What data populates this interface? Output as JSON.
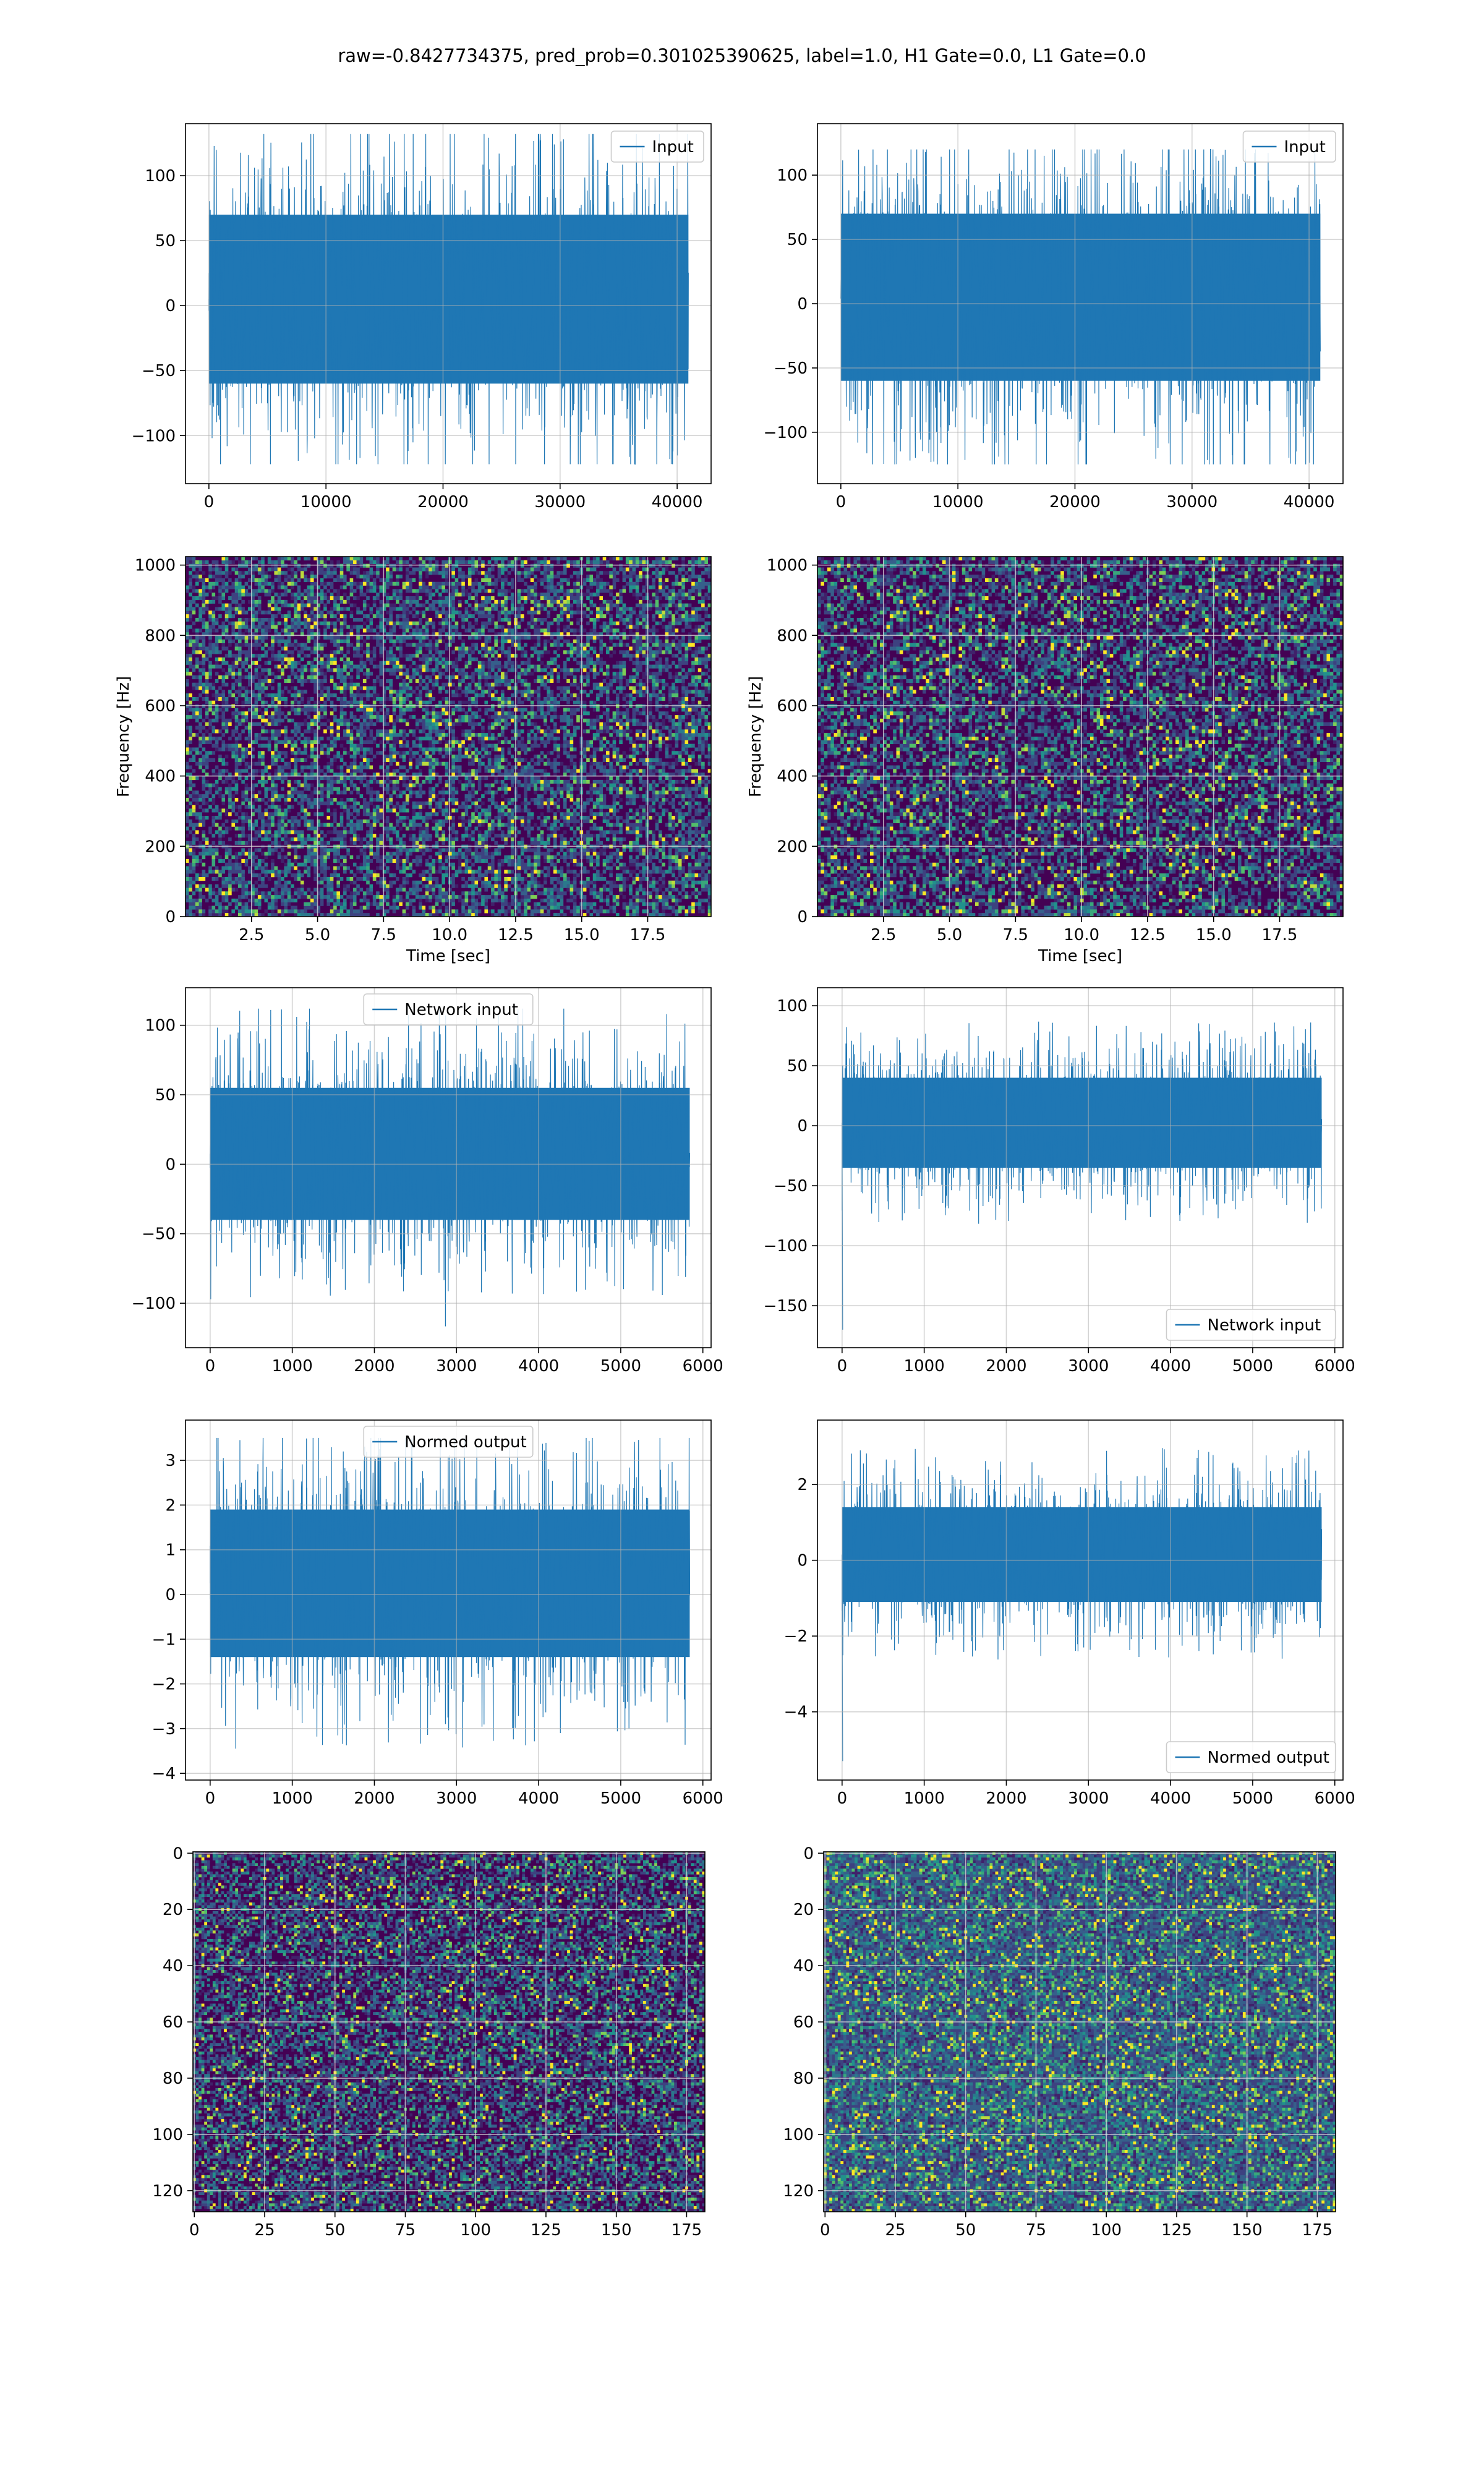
{
  "figure": {
    "suptitle": "raw=-0.8427734375, pred_prob=0.301025390625, label=1.0, H1 Gate=0.0, L1 Gate=0.0"
  },
  "colors": {
    "series": "#1f77b4",
    "grid": "#b0b0b0",
    "viridis_low": "#440154",
    "viridis_mid": "#21918c",
    "viridis_high": "#fde725"
  },
  "chart_data": [
    {
      "id": "r1c1",
      "type": "line",
      "title": "",
      "xlabel": "",
      "ylabel": "",
      "legend": {
        "entries": [
          "Input"
        ],
        "position": "top-right"
      },
      "grid": true,
      "xlim": [
        -2000,
        42900
      ],
      "ylim": [
        -137,
        140
      ],
      "xticks": [
        0,
        10000,
        20000,
        30000,
        40000
      ],
      "xtick_labels": [
        "0",
        "10000",
        "20000",
        "30000",
        "40000"
      ],
      "yticks": [
        -100,
        -50,
        0,
        50,
        100
      ],
      "ytick_labels": [
        "−100",
        "−50",
        "0",
        "50",
        "100"
      ],
      "series": [
        {
          "name": "Input",
          "n": 40960,
          "x_range": [
            0,
            40960
          ],
          "band": [
            -60,
            70
          ],
          "extremes": [
            -122,
            132
          ]
        }
      ]
    },
    {
      "id": "r1c2",
      "type": "line",
      "title": "",
      "xlabel": "",
      "ylabel": "",
      "legend": {
        "entries": [
          "Input"
        ],
        "position": "top-right"
      },
      "grid": true,
      "xlim": [
        -2000,
        42900
      ],
      "ylim": [
        -140,
        140
      ],
      "xticks": [
        0,
        10000,
        20000,
        30000,
        40000
      ],
      "xtick_labels": [
        "0",
        "10000",
        "20000",
        "30000",
        "40000"
      ],
      "yticks": [
        -100,
        -50,
        0,
        50,
        100
      ],
      "ytick_labels": [
        "−100",
        "−50",
        "0",
        "50",
        "100"
      ],
      "series": [
        {
          "name": "Input",
          "n": 40960,
          "x_range": [
            0,
            40960
          ],
          "band": [
            -60,
            70
          ],
          "extremes": [
            -125,
            120
          ]
        }
      ]
    },
    {
      "id": "r2c1",
      "type": "heatmap",
      "title": "",
      "xlabel": "Time [sec]",
      "ylabel": "Frequency [Hz]",
      "grid": true,
      "colormap": "viridis",
      "xlim": [
        0,
        19.9
      ],
      "ylim": [
        0,
        1024
      ],
      "xticks": [
        2.5,
        5.0,
        7.5,
        10.0,
        12.5,
        15.0,
        17.5
      ],
      "xtick_labels": [
        "2.5",
        "5.0",
        "7.5",
        "10.0",
        "12.5",
        "15.0",
        "17.5"
      ],
      "yticks": [
        0,
        200,
        400,
        600,
        800,
        1000
      ],
      "ytick_labels": [
        "0",
        "200",
        "400",
        "600",
        "800",
        "1000"
      ]
    },
    {
      "id": "r2c2",
      "type": "heatmap",
      "title": "",
      "xlabel": "Time [sec]",
      "ylabel": "Frequency [Hz]",
      "grid": true,
      "colormap": "viridis",
      "xlim": [
        0,
        19.9
      ],
      "ylim": [
        0,
        1024
      ],
      "xticks": [
        2.5,
        5.0,
        7.5,
        10.0,
        12.5,
        15.0,
        17.5
      ],
      "xtick_labels": [
        "2.5",
        "5.0",
        "7.5",
        "10.0",
        "12.5",
        "15.0",
        "17.5"
      ],
      "yticks": [
        0,
        200,
        400,
        600,
        800,
        1000
      ],
      "ytick_labels": [
        "0",
        "200",
        "400",
        "600",
        "800",
        "1000"
      ]
    },
    {
      "id": "r3c1",
      "type": "line",
      "title": "",
      "xlabel": "",
      "ylabel": "",
      "legend": {
        "entries": [
          "Network input"
        ],
        "position": "top-center"
      },
      "grid": true,
      "xlim": [
        -300,
        6100
      ],
      "ylim": [
        -132,
        127
      ],
      "xticks": [
        0,
        1000,
        2000,
        3000,
        4000,
        5000,
        6000
      ],
      "xtick_labels": [
        "0",
        "1000",
        "2000",
        "3000",
        "4000",
        "5000",
        "6000"
      ],
      "yticks": [
        -100,
        -50,
        0,
        50,
        100
      ],
      "ytick_labels": [
        "−100",
        "−50",
        "0",
        "50",
        "100"
      ],
      "series": [
        {
          "name": "Network input",
          "n": 5840,
          "x_range": [
            0,
            5840
          ],
          "band": [
            -40,
            55
          ],
          "extremes": [
            -118,
            112
          ]
        }
      ]
    },
    {
      "id": "r3c2",
      "type": "line",
      "title": "",
      "xlabel": "",
      "ylabel": "",
      "legend": {
        "entries": [
          "Network input"
        ],
        "position": "bottom-right"
      },
      "grid": true,
      "xlim": [
        -300,
        6100
      ],
      "ylim": [
        -185,
        115
      ],
      "xticks": [
        0,
        1000,
        2000,
        3000,
        4000,
        5000,
        6000
      ],
      "xtick_labels": [
        "0",
        "1000",
        "2000",
        "3000",
        "4000",
        "5000",
        "6000"
      ],
      "yticks": [
        -150,
        -100,
        -50,
        0,
        50,
        100
      ],
      "ytick_labels": [
        "−150",
        "−100",
        "−50",
        "0",
        "50",
        "100"
      ],
      "series": [
        {
          "name": "Network input",
          "n": 5840,
          "x_range": [
            0,
            5840
          ],
          "band": [
            -35,
            40
          ],
          "extremes": [
            -170,
            110
          ]
        }
      ]
    },
    {
      "id": "r4c1",
      "type": "line",
      "title": "",
      "xlabel": "",
      "ylabel": "",
      "legend": {
        "entries": [
          "Normed output"
        ],
        "position": "top-center"
      },
      "grid": true,
      "xlim": [
        -300,
        6100
      ],
      "ylim": [
        -4.15,
        3.9
      ],
      "xticks": [
        0,
        1000,
        2000,
        3000,
        4000,
        5000,
        6000
      ],
      "xtick_labels": [
        "0",
        "1000",
        "2000",
        "3000",
        "4000",
        "5000",
        "6000"
      ],
      "yticks": [
        -4,
        -3,
        -2,
        -1,
        0,
        1,
        2,
        3
      ],
      "ytick_labels": [
        "−4",
        "−3",
        "−2",
        "−1",
        "0",
        "1",
        "2",
        "3"
      ],
      "series": [
        {
          "name": "Normed output",
          "n": 5840,
          "x_range": [
            0,
            5840
          ],
          "band": [
            -1.4,
            1.9
          ],
          "extremes": [
            -3.7,
            3.5
          ]
        }
      ]
    },
    {
      "id": "r4c2",
      "type": "line",
      "title": "",
      "xlabel": "",
      "ylabel": "",
      "legend": {
        "entries": [
          "Normed output"
        ],
        "position": "bottom-right"
      },
      "grid": true,
      "xlim": [
        -300,
        6100
      ],
      "ylim": [
        -5.8,
        3.7
      ],
      "xticks": [
        0,
        1000,
        2000,
        3000,
        4000,
        5000,
        6000
      ],
      "xtick_labels": [
        "0",
        "1000",
        "2000",
        "3000",
        "4000",
        "5000",
        "6000"
      ],
      "yticks": [
        -4,
        -2,
        0,
        2
      ],
      "ytick_labels": [
        "−4",
        "−2",
        "0",
        "2"
      ],
      "series": [
        {
          "name": "Normed output",
          "n": 5840,
          "x_range": [
            0,
            5840
          ],
          "band": [
            -1.1,
            1.4
          ],
          "extremes": [
            -5.3,
            3.3
          ]
        }
      ]
    },
    {
      "id": "r5c1",
      "type": "heatmap",
      "title": "",
      "xlabel": "",
      "ylabel": "",
      "grid": true,
      "colormap": "viridis",
      "y_inverted": true,
      "xlim": [
        -0.5,
        181.5
      ],
      "ylim": [
        127.5,
        -0.5
      ],
      "xticks": [
        0,
        25,
        50,
        75,
        100,
        125,
        150,
        175
      ],
      "xtick_labels": [
        "0",
        "25",
        "50",
        "75",
        "100",
        "125",
        "150",
        "175"
      ],
      "yticks": [
        0,
        20,
        40,
        60,
        80,
        100,
        120
      ],
      "ytick_labels": [
        "0",
        "20",
        "40",
        "60",
        "80",
        "100",
        "120"
      ],
      "matrix_shape": [
        128,
        182
      ]
    },
    {
      "id": "r5c2",
      "type": "heatmap",
      "title": "",
      "xlabel": "",
      "ylabel": "",
      "grid": true,
      "colormap": "viridis",
      "y_inverted": true,
      "xlim": [
        -0.5,
        181.5
      ],
      "ylim": [
        127.5,
        -0.5
      ],
      "xticks": [
        0,
        25,
        50,
        75,
        100,
        125,
        150,
        175
      ],
      "xtick_labels": [
        "0",
        "25",
        "50",
        "75",
        "100",
        "125",
        "150",
        "175"
      ],
      "yticks": [
        0,
        20,
        40,
        60,
        80,
        100,
        120
      ],
      "ytick_labels": [
        "0",
        "20",
        "40",
        "60",
        "80",
        "100",
        "120"
      ],
      "matrix_shape": [
        128,
        182
      ]
    }
  ]
}
